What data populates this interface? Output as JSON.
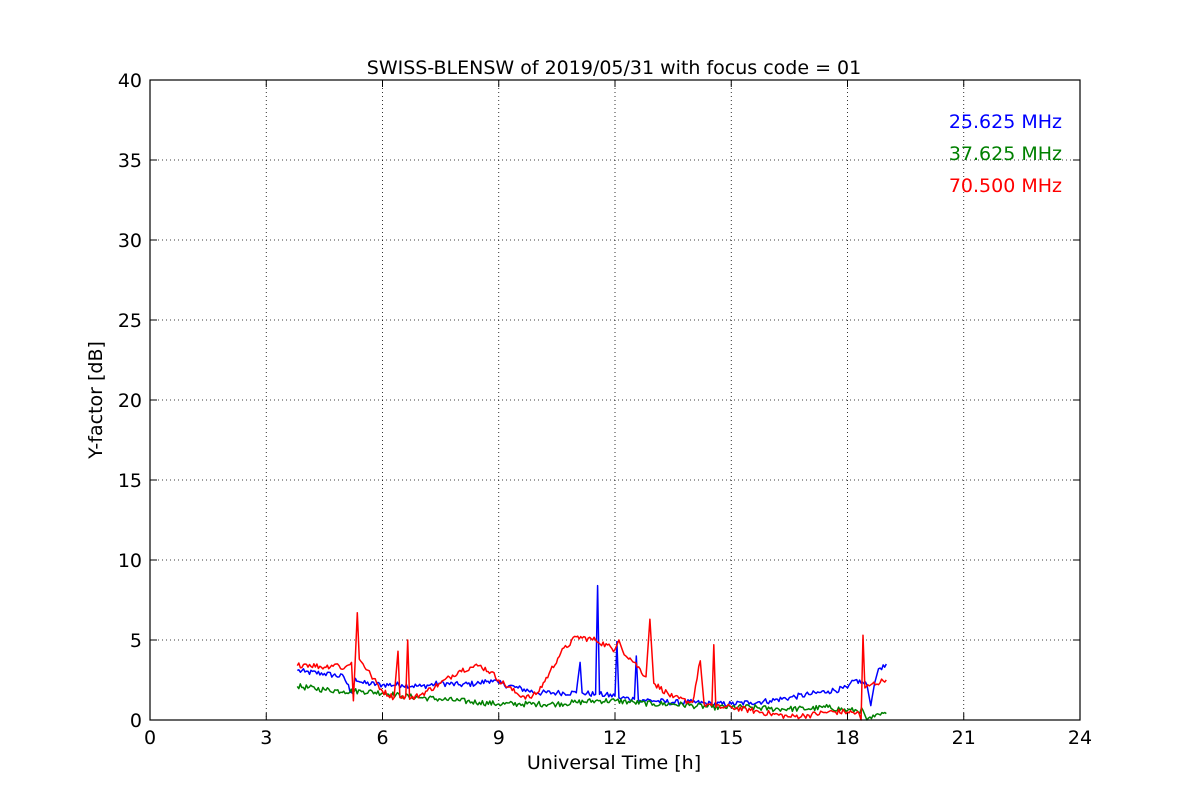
{
  "chart_data": {
    "type": "line",
    "title": "SWISS-BLENSW of 2019/05/31 with focus code = 01",
    "xlabel": "Universal Time [h]",
    "ylabel": "Y-factor [dB]",
    "xlim": [
      0,
      24
    ],
    "ylim": [
      0,
      40
    ],
    "xticks": [
      0,
      3,
      6,
      9,
      12,
      15,
      18,
      21,
      24
    ],
    "yticks": [
      0,
      5,
      10,
      15,
      20,
      25,
      30,
      35,
      40
    ],
    "grid": true,
    "legend_placement": "top-right",
    "series": [
      {
        "name": "25.625 MHz",
        "color": "#0000ff",
        "points": [
          [
            3.8,
            3.1
          ],
          [
            4.0,
            3.0
          ],
          [
            4.5,
            2.9
          ],
          [
            5.0,
            2.7
          ],
          [
            5.2,
            1.7
          ],
          [
            5.3,
            2.6
          ],
          [
            5.5,
            2.3
          ],
          [
            6.0,
            2.2
          ],
          [
            6.5,
            2.2
          ],
          [
            7.0,
            2.1
          ],
          [
            7.5,
            2.3
          ],
          [
            8.0,
            2.2
          ],
          [
            8.5,
            2.3
          ],
          [
            8.8,
            2.5
          ],
          [
            9.0,
            2.3
          ],
          [
            9.5,
            2.0
          ],
          [
            10.0,
            1.7
          ],
          [
            10.5,
            1.7
          ],
          [
            11.0,
            1.7
          ],
          [
            11.1,
            3.6
          ],
          [
            11.15,
            1.7
          ],
          [
            11.5,
            1.6
          ],
          [
            11.55,
            8.4
          ],
          [
            11.6,
            1.6
          ],
          [
            12.0,
            1.5
          ],
          [
            12.05,
            4.9
          ],
          [
            12.1,
            1.4
          ],
          [
            12.5,
            1.3
          ],
          [
            12.55,
            4.0
          ],
          [
            12.6,
            1.3
          ],
          [
            13.0,
            1.2
          ],
          [
            13.5,
            1.1
          ],
          [
            14.0,
            1.1
          ],
          [
            14.5,
            1.0
          ],
          [
            15.0,
            1.0
          ],
          [
            15.5,
            1.1
          ],
          [
            16.0,
            1.2
          ],
          [
            16.5,
            1.4
          ],
          [
            17.0,
            1.6
          ],
          [
            17.5,
            1.8
          ],
          [
            18.0,
            2.0
          ],
          [
            18.2,
            2.5
          ],
          [
            18.5,
            2.2
          ],
          [
            18.6,
            0.9
          ],
          [
            18.7,
            2.3
          ],
          [
            18.8,
            3.2
          ],
          [
            19.0,
            3.5
          ]
        ]
      },
      {
        "name": "37.625 MHz",
        "color": "#008000",
        "points": [
          [
            3.8,
            2.1
          ],
          [
            4.5,
            1.9
          ],
          [
            5.0,
            1.8
          ],
          [
            5.5,
            1.8
          ],
          [
            6.0,
            1.7
          ],
          [
            6.5,
            1.5
          ],
          [
            7.0,
            1.4
          ],
          [
            7.5,
            1.3
          ],
          [
            8.0,
            1.2
          ],
          [
            8.5,
            1.1
          ],
          [
            9.0,
            1.0
          ],
          [
            9.5,
            1.0
          ],
          [
            10.0,
            1.0
          ],
          [
            10.5,
            1.0
          ],
          [
            11.0,
            1.1
          ],
          [
            11.5,
            1.2
          ],
          [
            12.0,
            1.2
          ],
          [
            12.5,
            1.1
          ],
          [
            13.0,
            1.0
          ],
          [
            13.5,
            1.0
          ],
          [
            14.0,
            0.9
          ],
          [
            14.5,
            0.8
          ],
          [
            15.0,
            0.8
          ],
          [
            15.5,
            0.8
          ],
          [
            16.0,
            0.7
          ],
          [
            16.5,
            0.7
          ],
          [
            17.0,
            0.7
          ],
          [
            17.5,
            0.8
          ],
          [
            18.0,
            0.6
          ],
          [
            18.4,
            0.6
          ],
          [
            18.5,
            0.0
          ],
          [
            18.7,
            0.2
          ],
          [
            19.0,
            0.4
          ]
        ]
      },
      {
        "name": "70.500 MHz",
        "color": "#ff0000",
        "points": [
          [
            3.8,
            3.4
          ],
          [
            4.0,
            3.5
          ],
          [
            4.5,
            3.3
          ],
          [
            4.8,
            3.5
          ],
          [
            5.0,
            3.2
          ],
          [
            5.2,
            3.6
          ],
          [
            5.25,
            1.2
          ],
          [
            5.3,
            4.0
          ],
          [
            5.35,
            6.7
          ],
          [
            5.4,
            3.8
          ],
          [
            5.5,
            3.5
          ],
          [
            5.7,
            2.8
          ],
          [
            6.0,
            1.8
          ],
          [
            6.3,
            1.4
          ],
          [
            6.4,
            4.3
          ],
          [
            6.45,
            1.4
          ],
          [
            6.6,
            1.5
          ],
          [
            6.65,
            5.0
          ],
          [
            6.7,
            1.3
          ],
          [
            7.0,
            1.6
          ],
          [
            7.5,
            2.3
          ],
          [
            8.0,
            3.1
          ],
          [
            8.3,
            3.3
          ],
          [
            8.5,
            3.4
          ],
          [
            8.8,
            3.0
          ],
          [
            9.0,
            2.5
          ],
          [
            9.5,
            1.6
          ],
          [
            9.8,
            1.4
          ],
          [
            10.0,
            1.7
          ],
          [
            10.3,
            2.9
          ],
          [
            10.6,
            4.2
          ],
          [
            11.0,
            5.2
          ],
          [
            11.5,
            5.0
          ],
          [
            12.0,
            4.4
          ],
          [
            12.1,
            5.0
          ],
          [
            12.2,
            4.3
          ],
          [
            12.5,
            3.6
          ],
          [
            12.8,
            2.7
          ],
          [
            12.9,
            6.3
          ],
          [
            13.0,
            2.3
          ],
          [
            13.5,
            1.4
          ],
          [
            14.0,
            1.1
          ],
          [
            14.2,
            3.7
          ],
          [
            14.3,
            1.0
          ],
          [
            14.5,
            0.9
          ],
          [
            14.55,
            4.7
          ],
          [
            14.6,
            0.8
          ],
          [
            15.0,
            0.8
          ],
          [
            15.5,
            0.6
          ],
          [
            16.0,
            0.4
          ],
          [
            16.5,
            0.2
          ],
          [
            17.0,
            0.3
          ],
          [
            17.5,
            0.5
          ],
          [
            18.0,
            0.5
          ],
          [
            18.3,
            0.4
          ],
          [
            18.35,
            0.0
          ],
          [
            18.4,
            5.3
          ],
          [
            18.45,
            2.0
          ],
          [
            18.6,
            2.2
          ],
          [
            19.0,
            2.5
          ]
        ]
      }
    ]
  }
}
